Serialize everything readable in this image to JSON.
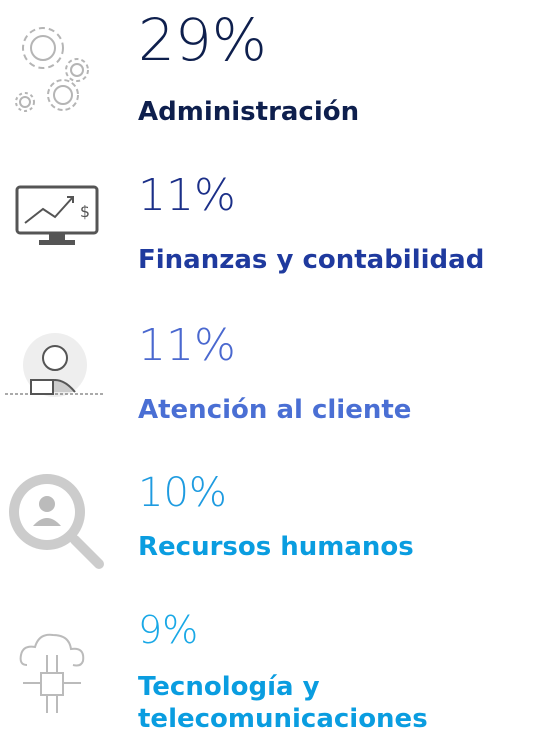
{
  "items": [
    {
      "percent": "29%",
      "label": "Administración"
    },
    {
      "percent": "11%",
      "label": "Finanzas y contabilidad"
    },
    {
      "percent": "11%",
      "label": "Atención al cliente"
    },
    {
      "percent": "10%",
      "label": "Recursos humanos"
    },
    {
      "percent": "9%",
      "label": [
        "Tecnología y",
        "telecomunicaciones"
      ]
    }
  ]
}
